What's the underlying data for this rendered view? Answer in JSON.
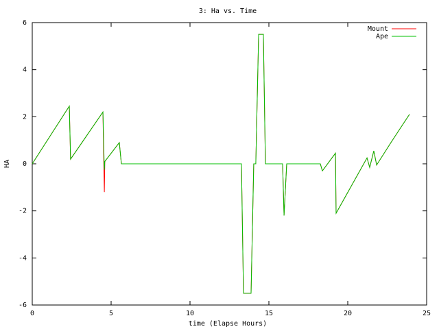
{
  "chart_data": {
    "type": "line",
    "title": "3: Ha vs. Time",
    "x_label": "time (Elapse Hours)",
    "y_label": "HA",
    "x": [
      0,
      2.35,
      2.43,
      4.48,
      4.57,
      4.6,
      5.52,
      5.65,
      13.26,
      13.39,
      13.87,
      14.04,
      14.17,
      14.35,
      14.65,
      14.78,
      15.87,
      15.96,
      16.13,
      18.26,
      18.39,
      19.22,
      19.26,
      21.22,
      21.39,
      21.65,
      21.83,
      22.83,
      23.91
    ],
    "series": [
      {
        "name": "Mount",
        "color": "#ff0000",
        "values": [
          0,
          2.45,
          0.2,
          2.2,
          -1.2,
          0.1,
          0.9,
          0,
          0,
          -5.5,
          -5.5,
          0,
          0,
          5.5,
          5.5,
          0,
          0,
          -2.2,
          0,
          0,
          -0.3,
          0.45,
          -2.1,
          0.25,
          -0.15,
          0.55,
          -0.05,
          1.0,
          2.1
        ]
      },
      {
        "name": "Ape",
        "color": "#00c000",
        "values": [
          0,
          2.45,
          0.2,
          2.2,
          -0.25,
          0.1,
          0.9,
          0,
          0,
          -5.5,
          -5.5,
          0,
          0,
          5.5,
          5.5,
          0,
          0,
          -2.2,
          0,
          0,
          -0.3,
          0.45,
          -2.1,
          0.25,
          -0.15,
          0.55,
          -0.05,
          1.0,
          2.1
        ]
      }
    ],
    "xlim": [
      0,
      25
    ],
    "xticks": [
      0,
      5,
      10,
      15,
      20,
      25
    ],
    "ylim": [
      -6,
      6
    ],
    "yticks": [
      -6,
      -4,
      -2,
      0,
      2,
      4,
      6
    ],
    "legend": "top-right"
  }
}
